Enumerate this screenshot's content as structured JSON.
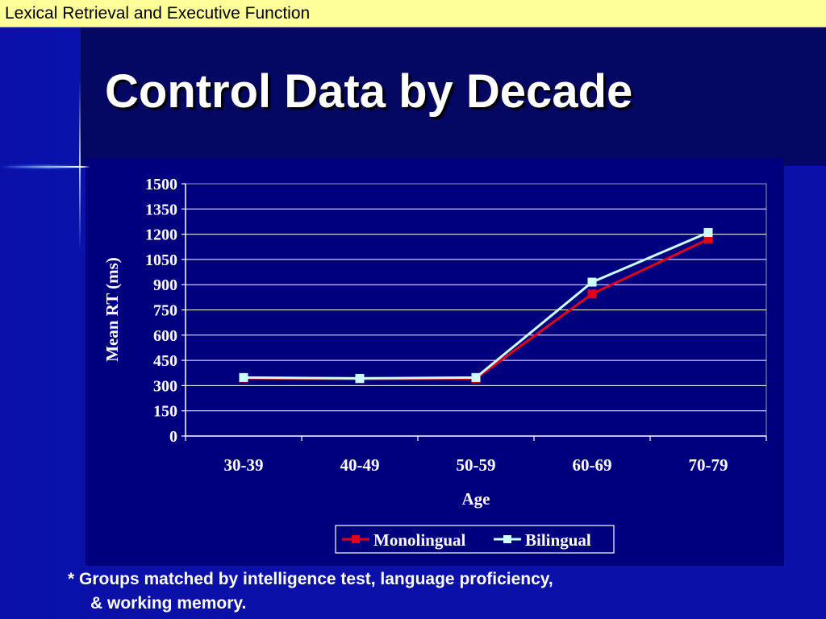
{
  "header": {
    "text": "Lexical Retrieval and Executive Function"
  },
  "slide": {
    "title": "Control Data by Decade"
  },
  "footnote": {
    "line1": "* Groups matched by intelligence test, language proficiency,",
    "line2": "& working memory."
  },
  "colors": {
    "header_bg": "#ffff99",
    "title_band": "#050863",
    "slide_bg": "#0a10a8",
    "chart_bg": "#00007e",
    "monolingual": "#e0001a",
    "bilingual": "#ccffff"
  },
  "chart_data": {
    "type": "line",
    "categories": [
      "30-39",
      "40-49",
      "50-59",
      "60-69",
      "70-79"
    ],
    "series": [
      {
        "name": "Monolingual",
        "values": [
          345,
          338,
          342,
          845,
          1170
        ],
        "color": "#e0001a",
        "marker": "square"
      },
      {
        "name": "Bilingual",
        "values": [
          348,
          343,
          348,
          915,
          1210
        ],
        "color": "#ccffff",
        "marker": "square"
      }
    ],
    "xlabel": "Age",
    "ylabel": "Mean RT (ms)",
    "ylim": [
      0,
      1500
    ],
    "yticks": [
      "0",
      "150",
      "300",
      "450",
      "600",
      "750",
      "900",
      "1050",
      "1200",
      "1350",
      "1500"
    ],
    "grid": true,
    "legend": "bottom-center"
  }
}
